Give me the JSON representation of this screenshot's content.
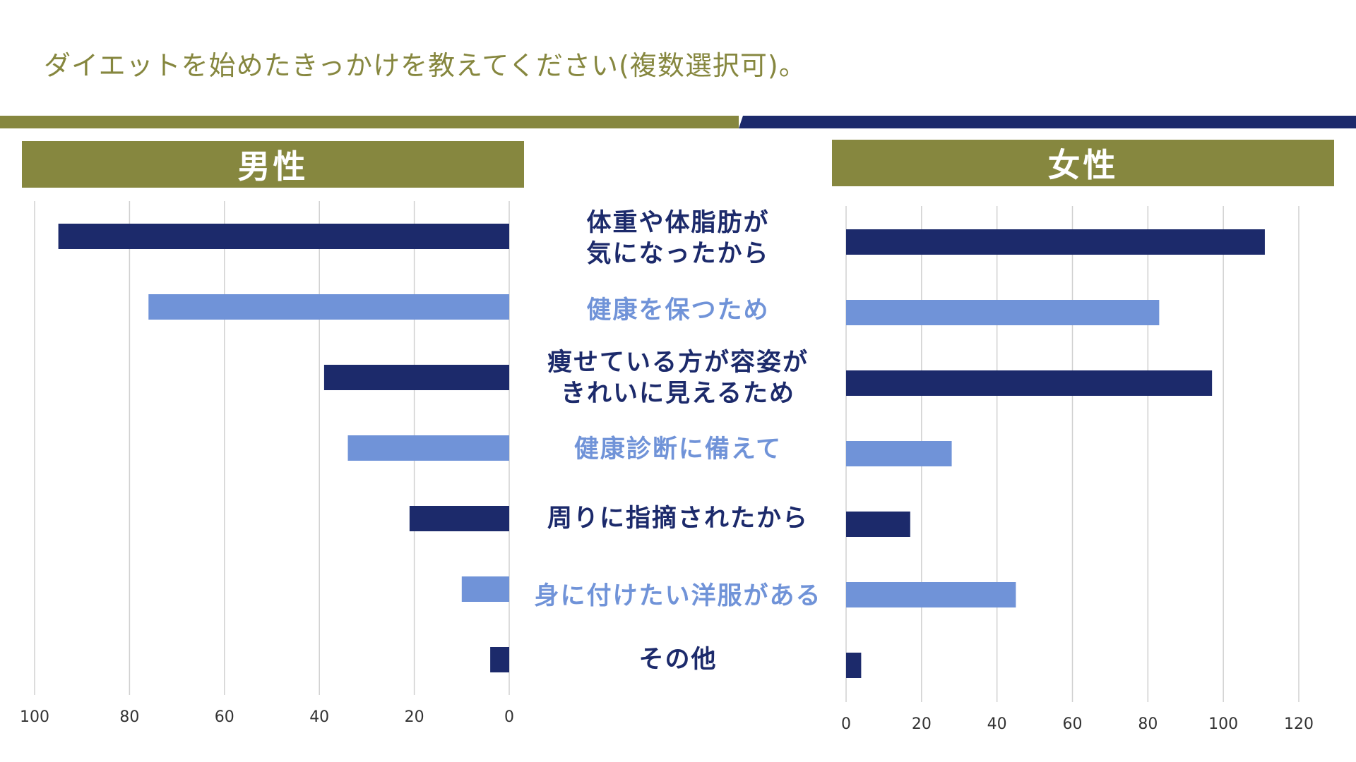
{
  "title": "ダイエットを始めたきっかけを教えてください(複数選択可)。",
  "colors": {
    "olive": "#86873f",
    "navy": "#1c2a6b",
    "light_blue": "#7093d8",
    "grid": "#d0d0d0"
  },
  "chart_data": [
    {
      "type": "bar",
      "orientation": "horizontal",
      "title": "男性",
      "x_direction": "reversed",
      "xlim": [
        0,
        100
      ],
      "xticks": [
        100,
        80,
        60,
        40,
        20,
        0
      ],
      "categories": [
        "体重や体脂肪が\n気になったから",
        "健康を保つため",
        "痩せている方が容姿が\nきれいに見えるため",
        "健康診断に備えて",
        "周りに指摘されたから",
        "身に付けたい洋服がある",
        "その他"
      ],
      "values": [
        95,
        76,
        39,
        34,
        21,
        10,
        4
      ],
      "grid": true,
      "legend": "none"
    },
    {
      "type": "bar",
      "orientation": "horizontal",
      "title": "女性",
      "xlim": [
        0,
        120
      ],
      "xticks": [
        0,
        20,
        40,
        60,
        80,
        100,
        120
      ],
      "categories": [
        "体重や体脂肪が\n気になったから",
        "健康を保つため",
        "痩せている方が容姿が\nきれいに見えるため",
        "健康診断に備えて",
        "周りに指摘されたから",
        "身に付けたい洋服がある",
        "その他"
      ],
      "values": [
        111,
        83,
        97,
        28,
        17,
        45,
        4
      ],
      "grid": true,
      "legend": "none"
    }
  ]
}
